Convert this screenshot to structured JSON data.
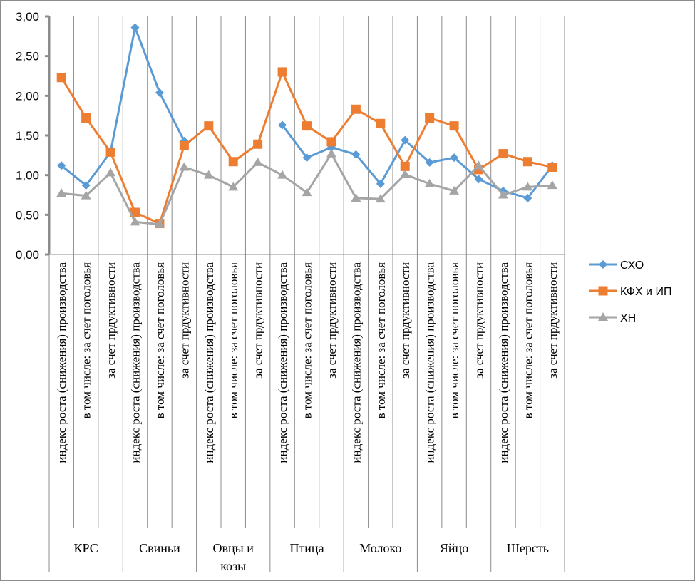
{
  "chart_data": {
    "type": "line",
    "title": "",
    "xlabel": "",
    "ylabel": "",
    "ylim": [
      0,
      3
    ],
    "yticks": [
      "0,00",
      "0,50",
      "1,00",
      "1,50",
      "2,00",
      "2,50",
      "3,00"
    ],
    "ytick_values": [
      0,
      0.5,
      1,
      1.5,
      2,
      2.5,
      3
    ],
    "grid": "vertical",
    "legend_position": "right",
    "groups": [
      {
        "label": "КРС",
        "label_lines": [
          "КРС"
        ]
      },
      {
        "label": "Свиньи",
        "label_lines": [
          "Свиньи"
        ]
      },
      {
        "label": "Овцы и козы",
        "label_lines": [
          "Овцы и",
          "козы"
        ]
      },
      {
        "label": "Птица",
        "label_lines": [
          "Птица"
        ]
      },
      {
        "label": "Молоко",
        "label_lines": [
          "Молоко"
        ]
      },
      {
        "label": "Яйцо",
        "label_lines": [
          "Яйцо"
        ]
      },
      {
        "label": "Шерсть",
        "label_lines": [
          "Шерсть"
        ]
      }
    ],
    "subcategories": [
      "индекс роста (снижения) производства",
      "в том числе: за счет поголовья",
      "за счет прдуктивности"
    ],
    "categories": [
      "КРС / индекс роста (снижения) производства",
      "КРС / в том числе: за счет поголовья",
      "КРС / за счет прдуктивности",
      "Свиньи / индекс роста (снижения) производства",
      "Свиньи / в том числе: за счет поголовья",
      "Свиньи / за счет прдуктивности",
      "Овцы и козы / индекс роста (снижения) производства",
      "Овцы и козы / в том числе: за счет поголовья",
      "Овцы и козы / за счет прдуктивности",
      "Птица / индекс роста (снижения) производства",
      "Птица / в том числе: за счет поголовья",
      "Птица / за счет прдуктивности",
      "Молоко / индекс роста (снижения) производства",
      "Молоко / в том числе: за счет поголовья",
      "Молоко / за счет прдуктивности",
      "Яйцо / индекс роста (снижения) производства",
      "Яйцо / в том числе: за счет поголовья",
      "Яйцо / за счет прдуктивности",
      "Шерсть / индекс роста (снижения) производства",
      "Шерсть / в том числе: за счет поголовья",
      "Шерсть / за счет прдуктивности"
    ],
    "series": [
      {
        "name": "СХО",
        "color": "#5b9bd5",
        "marker": "diamond",
        "values": [
          1.12,
          0.87,
          1.29,
          2.86,
          2.04,
          1.43,
          null,
          null,
          null,
          1.63,
          1.22,
          1.35,
          1.26,
          0.89,
          1.44,
          1.16,
          1.22,
          0.95,
          0.8,
          0.71,
          1.12
        ]
      },
      {
        "name": "КФХ и ИП",
        "color": "#ed7d31",
        "marker": "square",
        "values": [
          2.23,
          1.72,
          1.29,
          0.53,
          0.39,
          1.37,
          1.62,
          1.17,
          1.39,
          2.3,
          1.62,
          1.42,
          1.83,
          1.65,
          1.11,
          1.72,
          1.62,
          1.07,
          1.27,
          1.17,
          1.1
        ]
      },
      {
        "name": "ХН",
        "color": "#a5a5a5",
        "marker": "triangle",
        "values": [
          0.77,
          0.74,
          1.03,
          0.41,
          0.38,
          1.1,
          1.0,
          0.85,
          1.16,
          1.0,
          0.78,
          1.27,
          0.71,
          0.7,
          1.01,
          0.89,
          0.8,
          1.12,
          0.75,
          0.85,
          0.87
        ]
      }
    ]
  }
}
